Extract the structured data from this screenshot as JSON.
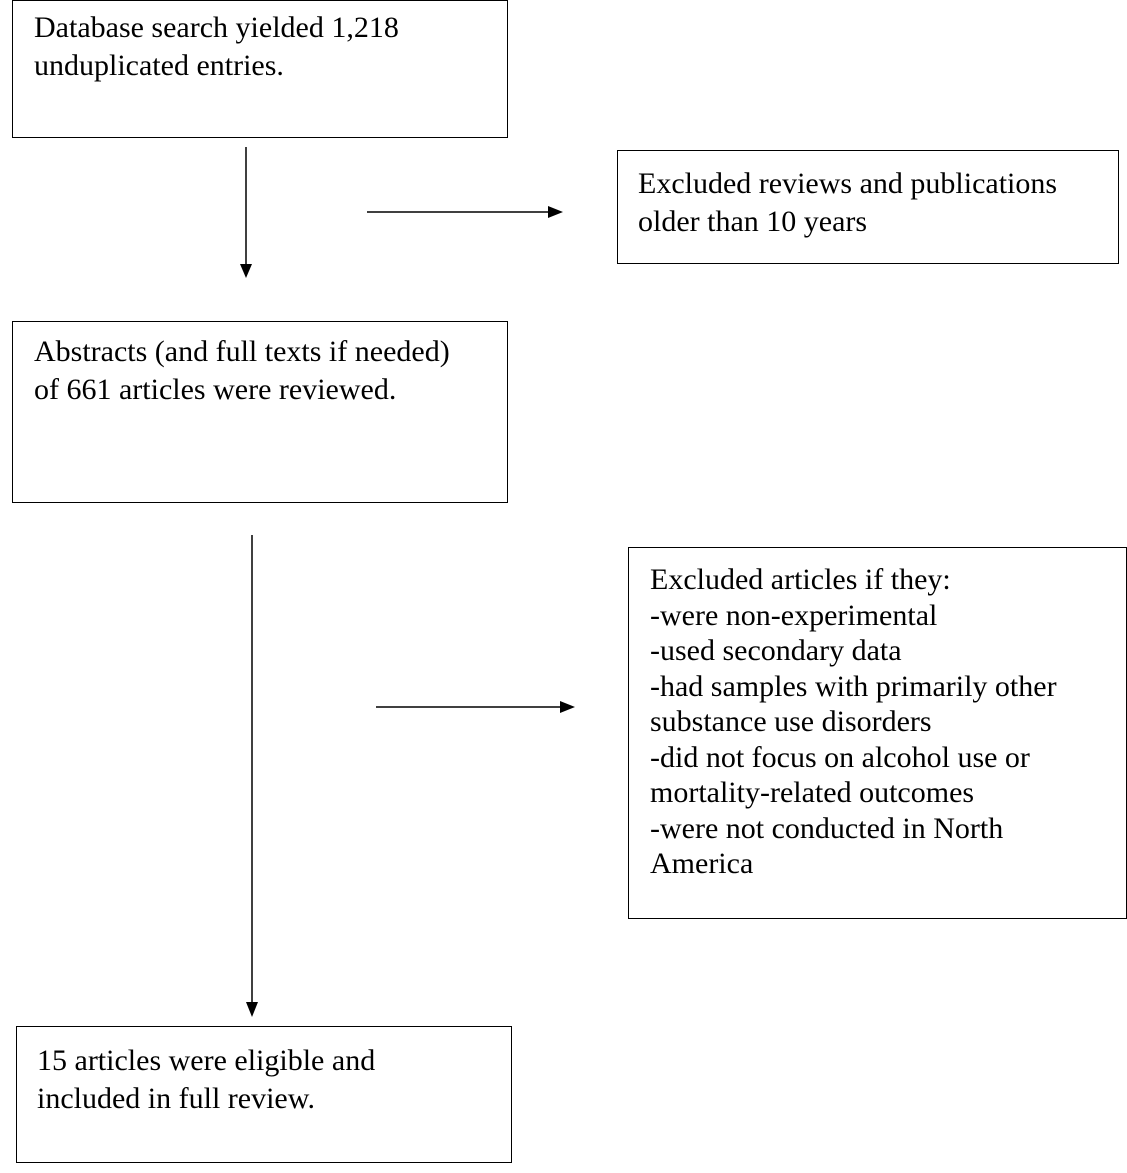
{
  "flowchart": {
    "search_box": {
      "lines": [
        "Database search yielded 1,218",
        "unduplicated entries."
      ]
    },
    "exclusion_box_1": {
      "lines": [
        "Excluded reviews and publications",
        "older than 10 years"
      ]
    },
    "abstracts_box": {
      "lines": [
        "Abstracts (and full texts if needed)",
        "of 661 articles were reviewed."
      ]
    },
    "exclusion_box_2": {
      "lines": [
        "Excluded articles if they:",
        "-were non-experimental",
        "-used secondary data",
        "-had samples with primarily other",
        "substance use disorders",
        "-did not focus on alcohol use or",
        "mortality-related outcomes",
        "-were not conducted in North",
        "America"
      ]
    },
    "included_box": {
      "lines": [
        "15 articles were eligible and",
        "included in full review."
      ]
    }
  },
  "colors": {
    "stroke": "#000000",
    "background": "#ffffff"
  }
}
